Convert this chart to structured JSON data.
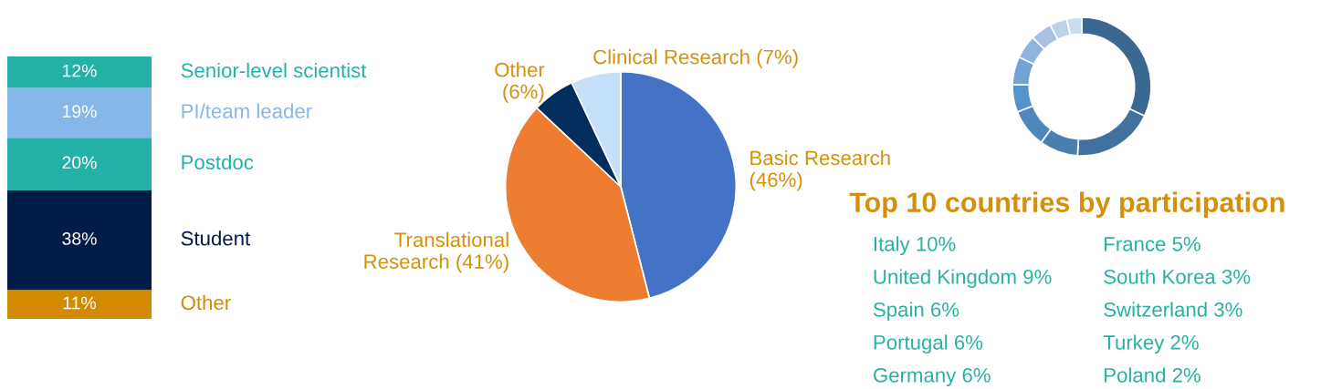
{
  "chart_data": [
    {
      "type": "bar",
      "stacked": true,
      "categories": [
        null
      ],
      "ylim": [
        0,
        100
      ],
      "legend": false,
      "series": [
        {
          "name": "Other",
          "color": "#d48a00",
          "values": [
            11
          ],
          "value_labels": [
            "11%"
          ]
        },
        {
          "name": "Student",
          "color": "#021c48",
          "values": [
            38
          ],
          "value_labels": [
            "38%"
          ]
        },
        {
          "name": "Postdoc",
          "color": "#24b2a8",
          "values": [
            20
          ],
          "value_labels": [
            "20%"
          ]
        },
        {
          "name": "PI/team leader",
          "color": "#85b7e8",
          "values": [
            19
          ],
          "value_labels": [
            "19%"
          ]
        },
        {
          "name": "Senior-level scientist",
          "color": "#24b2a8",
          "values": [
            12
          ],
          "value_labels": [
            "12%"
          ]
        }
      ]
    },
    {
      "type": "pie",
      "categories": [
        "Basic Research\n(46%)",
        "Translational\nResearch (41%)",
        "Other\n(6%)",
        "Clinical Research (7%)"
      ],
      "values": [
        46,
        41,
        6,
        7
      ],
      "colors": [
        "#4472c4",
        "#ed7d31",
        "#022d5c",
        "#c5e0fb"
      ]
    },
    {
      "type": "donut",
      "categories": [
        null,
        null,
        null,
        null,
        null,
        null,
        null,
        null,
        null,
        null
      ],
      "values": [
        32,
        19,
        9,
        9,
        6.5,
        6.5,
        5.5,
        5,
        4,
        3.5
      ],
      "colors": [
        "#3a6890",
        "#41729f",
        "#4a7fb0",
        "#4e87bd",
        "#5494cc",
        "#73a2d6",
        "#8fb2de",
        "#a8c1e5",
        "#bdd0ec",
        "#cddbef"
      ]
    },
    {
      "type": "other",
      "title": "Top 10 countries by participation",
      "annotations": [
        "Italy 10%",
        "United Kingdom 9%",
        "Spain 6%",
        "Portugal 6%",
        "Germany 6%",
        "France 5%",
        "South Korea 3%",
        "Switzerland 3%",
        "Turkey 2%",
        "Poland 2%"
      ]
    }
  ]
}
